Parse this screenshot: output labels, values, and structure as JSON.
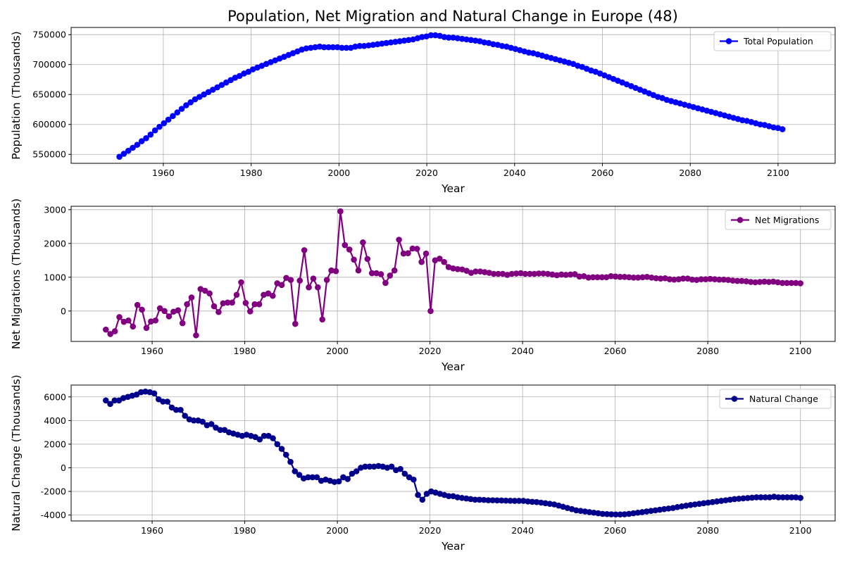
{
  "figure": {
    "title": "Population, Net Migration and Natural Change in Europe (48)"
  },
  "chart_data": [
    {
      "type": "line",
      "xlabel": "Year",
      "ylabel": "Population (Thousands)",
      "xlim": [
        1939,
        2113
      ],
      "ylim": [
        535000,
        762000
      ],
      "xticks": [
        1960,
        1980,
        2000,
        2020,
        2040,
        2060,
        2080,
        2100
      ],
      "yticks": [
        550000,
        600000,
        650000,
        700000,
        750000
      ],
      "grid": true,
      "legend_position": "top-right",
      "series": [
        {
          "name": "Total Population",
          "color": "#0000ff",
          "x_start": 1950,
          "x_end": 2101,
          "values": [
            546000,
            551000,
            556000,
            561000,
            566000,
            572000,
            577000,
            583000,
            590000,
            596000,
            602000,
            608000,
            614000,
            620000,
            626000,
            632000,
            637000,
            642000,
            646000,
            650000,
            654000,
            658000,
            662000,
            666000,
            670000,
            674000,
            678000,
            681000,
            685000,
            688000,
            692000,
            695000,
            698000,
            701000,
            704000,
            707000,
            710000,
            713000,
            716000,
            719000,
            722000,
            725000,
            727000,
            728000,
            729000,
            730000,
            729000,
            729000,
            729000,
            729000,
            728000,
            728000,
            728000,
            730000,
            731000,
            731000,
            732000,
            733000,
            734000,
            735000,
            736000,
            737000,
            738000,
            739000,
            740000,
            741000,
            742000,
            744000,
            746000,
            747000,
            749000,
            749000,
            748000,
            746000,
            745000,
            745000,
            744000,
            743000,
            742000,
            741000,
            740000,
            739000,
            737000,
            736000,
            734000,
            733000,
            731000,
            730000,
            728000,
            726000,
            724000,
            722000,
            720000,
            719000,
            717000,
            715000,
            713000,
            711000,
            709000,
            707000,
            705000,
            703000,
            701000,
            698000,
            696000,
            693000,
            690000,
            688000,
            685000,
            682000,
            679000,
            676000,
            673000,
            670000,
            667000,
            664000,
            661000,
            658000,
            655000,
            652000,
            649000,
            646000,
            644000,
            641000,
            639000,
            637000,
            635000,
            633000,
            631000,
            629000,
            627000,
            625000,
            623000,
            621000,
            619000,
            617000,
            615000,
            613000,
            611000,
            609000,
            607000,
            606000,
            604000,
            602000,
            600000,
            599000,
            597000,
            595000,
            594000,
            592000
          ]
        }
      ]
    },
    {
      "type": "line",
      "xlabel": "Year",
      "ylabel": "Net Migrations (Thousands)",
      "xlim": [
        1942.5,
        2107.5
      ],
      "ylim": [
        -900,
        3100
      ],
      "xticks": [
        1960,
        1980,
        2000,
        2020,
        2040,
        2060,
        2080,
        2100
      ],
      "yticks": [
        0,
        1000,
        2000,
        3000
      ],
      "grid": true,
      "legend_position": "top-right",
      "series": [
        {
          "name": "Net Migrations",
          "color": "#800080",
          "x_start": 1950,
          "x_end": 2100,
          "values": [
            -550,
            -680,
            -600,
            -180,
            -320,
            -280,
            -460,
            180,
            40,
            -500,
            -310,
            -280,
            80,
            0,
            -160,
            -20,
            20,
            -360,
            200,
            400,
            -720,
            650,
            600,
            520,
            140,
            -30,
            230,
            250,
            250,
            480,
            850,
            240,
            -10,
            200,
            200,
            480,
            520,
            450,
            820,
            770,
            980,
            920,
            -380,
            900,
            1800,
            700,
            960,
            700,
            -250,
            920,
            1200,
            1180,
            2950,
            1950,
            1820,
            1520,
            1200,
            2030,
            1540,
            1120,
            1120,
            1090,
            830,
            1050,
            1200,
            2110,
            1700,
            1710,
            1850,
            1840,
            1450,
            1700,
            0,
            1500,
            1550,
            1450,
            1300,
            1260,
            1240,
            1230,
            1190,
            1130,
            1170,
            1170,
            1150,
            1130,
            1100,
            1100,
            1100,
            1070,
            1100,
            1110,
            1120,
            1100,
            1100,
            1100,
            1110,
            1110,
            1100,
            1080,
            1060,
            1080,
            1070,
            1080,
            1090,
            1020,
            1030,
            990,
            1000,
            1000,
            1000,
            1000,
            1030,
            1020,
            1010,
            1010,
            1000,
            990,
            990,
            1000,
            1010,
            990,
            970,
            960,
            970,
            940,
            930,
            940,
            960,
            960,
            930,
            920,
            940,
            940,
            950,
            940,
            930,
            930,
            920,
            900,
            890,
            890,
            880,
            860,
            850,
            860,
            870,
            860,
            870,
            850,
            830,
            830,
            830,
            830,
            820
          ]
        }
      ]
    },
    {
      "type": "line",
      "xlabel": "Year",
      "ylabel": "Natural Change (Thousands)",
      "xlim": [
        1942.5,
        2107.5
      ],
      "ylim": [
        -4500,
        7000
      ],
      "xticks": [
        1960,
        1980,
        2000,
        2020,
        2040,
        2060,
        2080,
        2100
      ],
      "yticks": [
        -4000,
        -2000,
        0,
        2000,
        4000,
        6000
      ],
      "grid": true,
      "legend_position": "top-right",
      "series": [
        {
          "name": "Natural Change",
          "color": "#00008b",
          "x_start": 1950,
          "x_end": 2100,
          "values": [
            5700,
            5400,
            5700,
            5700,
            5900,
            6000,
            6100,
            6200,
            6400,
            6450,
            6400,
            6300,
            5800,
            5600,
            5600,
            5100,
            4900,
            4900,
            4400,
            4100,
            4000,
            4000,
            3900,
            3600,
            3700,
            3400,
            3200,
            3200,
            3000,
            2900,
            2800,
            2700,
            2800,
            2700,
            2600,
            2400,
            2700,
            2700,
            2500,
            2000,
            1600,
            1100,
            500,
            -300,
            -600,
            -900,
            -800,
            -800,
            -800,
            -1100,
            -1000,
            -1100,
            -1200,
            -1150,
            -800,
            -950,
            -500,
            -300,
            0,
            100,
            100,
            100,
            150,
            100,
            0,
            100,
            -200,
            -100,
            -500,
            -800,
            -1000,
            -2300,
            -2700,
            -2200,
            -2000,
            -2100,
            -2200,
            -2300,
            -2400,
            -2400,
            -2500,
            -2550,
            -2600,
            -2650,
            -2700,
            -2700,
            -2720,
            -2750,
            -2750,
            -2760,
            -2770,
            -2780,
            -2790,
            -2800,
            -2800,
            -2800,
            -2850,
            -2880,
            -2900,
            -2950,
            -3000,
            -3050,
            -3100,
            -3200,
            -3300,
            -3400,
            -3500,
            -3600,
            -3650,
            -3700,
            -3750,
            -3800,
            -3850,
            -3900,
            -3920,
            -3940,
            -3950,
            -3950,
            -3940,
            -3900,
            -3850,
            -3800,
            -3750,
            -3700,
            -3650,
            -3600,
            -3550,
            -3500,
            -3450,
            -3400,
            -3330,
            -3270,
            -3210,
            -3150,
            -3100,
            -3050,
            -3000,
            -2950,
            -2900,
            -2850,
            -2800,
            -2750,
            -2700,
            -2650,
            -2620,
            -2590,
            -2560,
            -2530,
            -2500,
            -2500,
            -2500,
            -2500,
            -2450,
            -2500,
            -2500,
            -2500,
            -2500,
            -2500,
            -2550
          ]
        }
      ]
    }
  ]
}
